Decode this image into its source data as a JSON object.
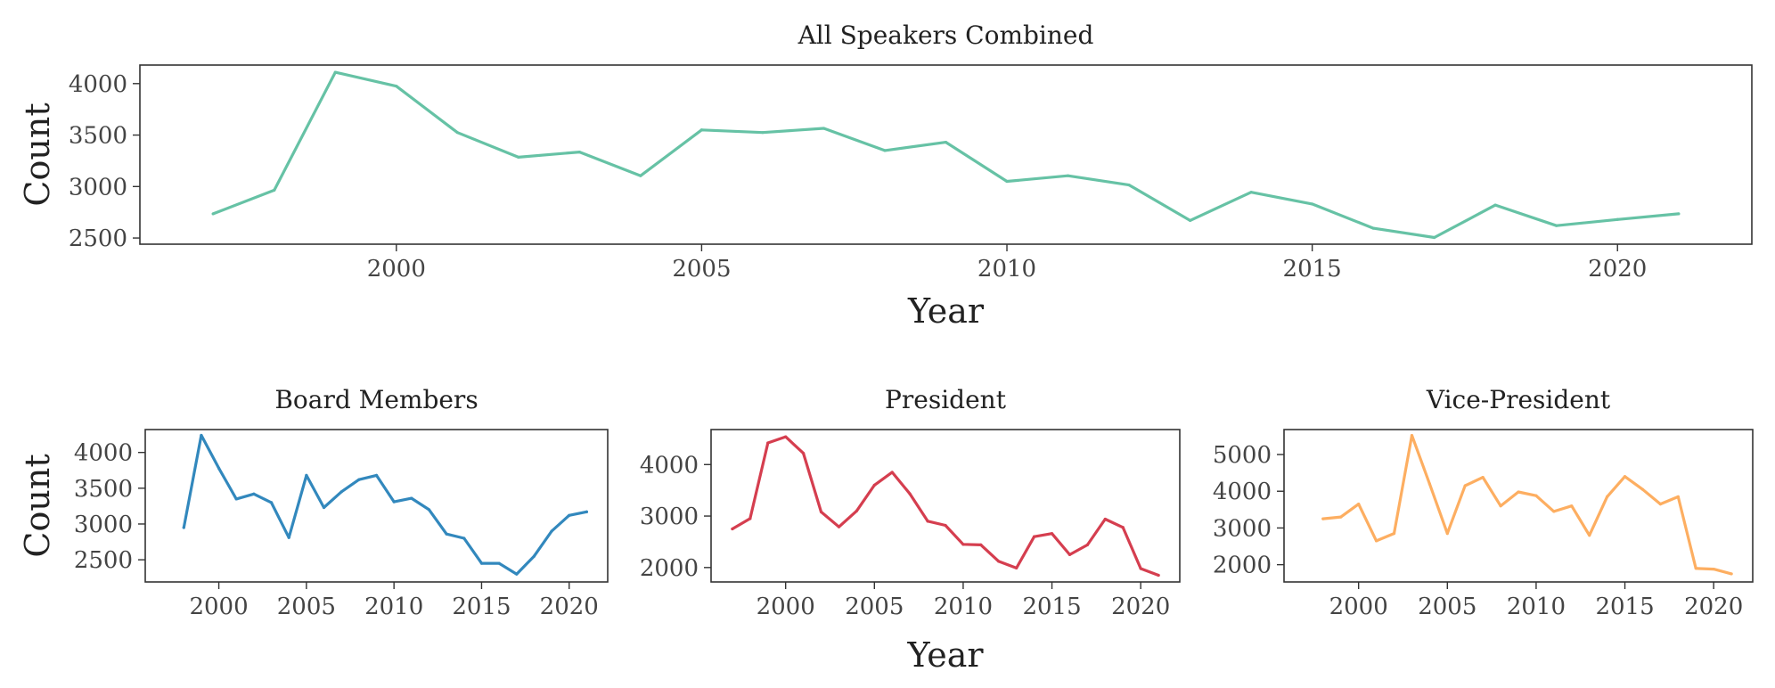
{
  "chart_data": [
    {
      "type": "line",
      "title": "All Speakers Combined",
      "xlabel": "Year",
      "ylabel": "Count",
      "xlim": [
        1995.8,
        2022.2
      ],
      "ylim": [
        2440,
        4180
      ],
      "xticks": [
        2000,
        2005,
        2010,
        2015,
        2020
      ],
      "yticks": [
        2500,
        3000,
        3500,
        4000
      ],
      "color": "#66c2a5",
      "x": [
        1997,
        1998,
        1999,
        2000,
        2001,
        2002,
        2003,
        2004,
        2005,
        2006,
        2007,
        2008,
        2009,
        2010,
        2011,
        2012,
        2013,
        2014,
        2015,
        2016,
        2017,
        2018,
        2019,
        2020,
        2021
      ],
      "values": [
        2735,
        2965,
        4110,
        3975,
        3525,
        3285,
        3335,
        3105,
        3550,
        3525,
        3565,
        3350,
        3430,
        3050,
        3105,
        3015,
        2670,
        2945,
        2830,
        2595,
        2505,
        2820,
        2620,
        2680,
        2735
      ]
    },
    {
      "type": "line",
      "title": "Board Members",
      "xlabel": "",
      "ylabel": "Count",
      "xlim": [
        1995.8,
        2022.2
      ],
      "ylim": [
        2190,
        4320
      ],
      "xticks": [
        2000,
        2005,
        2010,
        2015,
        2020
      ],
      "yticks": [
        2500,
        3000,
        3500,
        4000
      ],
      "color": "#3288bd",
      "x": [
        1998,
        1999,
        2000,
        2001,
        2002,
        2003,
        2004,
        2005,
        2006,
        2007,
        2008,
        2009,
        2010,
        2011,
        2012,
        2013,
        2014,
        2015,
        2016,
        2017,
        2018,
        2019,
        2020,
        2021
      ],
      "values": [
        2950,
        4240,
        3780,
        3350,
        3420,
        3300,
        2810,
        3680,
        3230,
        3450,
        3620,
        3680,
        3310,
        3360,
        3200,
        2860,
        2800,
        2450,
        2450,
        2300,
        2550,
        2900,
        3120,
        3170
      ]
    },
    {
      "type": "line",
      "title": "President",
      "xlabel": "Year",
      "ylabel": "",
      "xlim": [
        1995.8,
        2022.2
      ],
      "ylim": [
        1720,
        4680
      ],
      "xticks": [
        2000,
        2005,
        2010,
        2015,
        2020
      ],
      "yticks": [
        2000,
        3000,
        4000
      ],
      "color": "#d53e4f",
      "x": [
        1997,
        1998,
        1999,
        2000,
        2001,
        2002,
        2003,
        2004,
        2005,
        2006,
        2007,
        2008,
        2009,
        2010,
        2011,
        2012,
        2013,
        2014,
        2015,
        2016,
        2017,
        2018,
        2019,
        2020,
        2021
      ],
      "values": [
        2750,
        2950,
        4420,
        4540,
        4220,
        3080,
        2790,
        3100,
        3600,
        3850,
        3430,
        2900,
        2820,
        2450,
        2440,
        2120,
        1990,
        2600,
        2660,
        2250,
        2440,
        2940,
        2780,
        1980,
        1850
      ]
    },
    {
      "type": "line",
      "title": "Vice-President",
      "xlabel": "",
      "ylabel": "",
      "xlim": [
        1995.8,
        2022.2
      ],
      "ylim": [
        1530,
        5680
      ],
      "xticks": [
        2000,
        2005,
        2010,
        2015,
        2020
      ],
      "yticks": [
        2000,
        3000,
        4000,
        5000
      ],
      "color": "#fdae61",
      "x": [
        1998,
        1999,
        2000,
        2001,
        2002,
        2003,
        2004,
        2005,
        2006,
        2007,
        2008,
        2009,
        2010,
        2011,
        2012,
        2013,
        2014,
        2015,
        2016,
        2017,
        2018,
        2019,
        2020,
        2021
      ],
      "values": [
        3250,
        3300,
        3650,
        2650,
        2850,
        5520,
        4200,
        2850,
        4150,
        4380,
        3600,
        3980,
        3880,
        3450,
        3600,
        2800,
        3850,
        4400,
        4050,
        3650,
        3850,
        1900,
        1880,
        1750
      ]
    }
  ]
}
